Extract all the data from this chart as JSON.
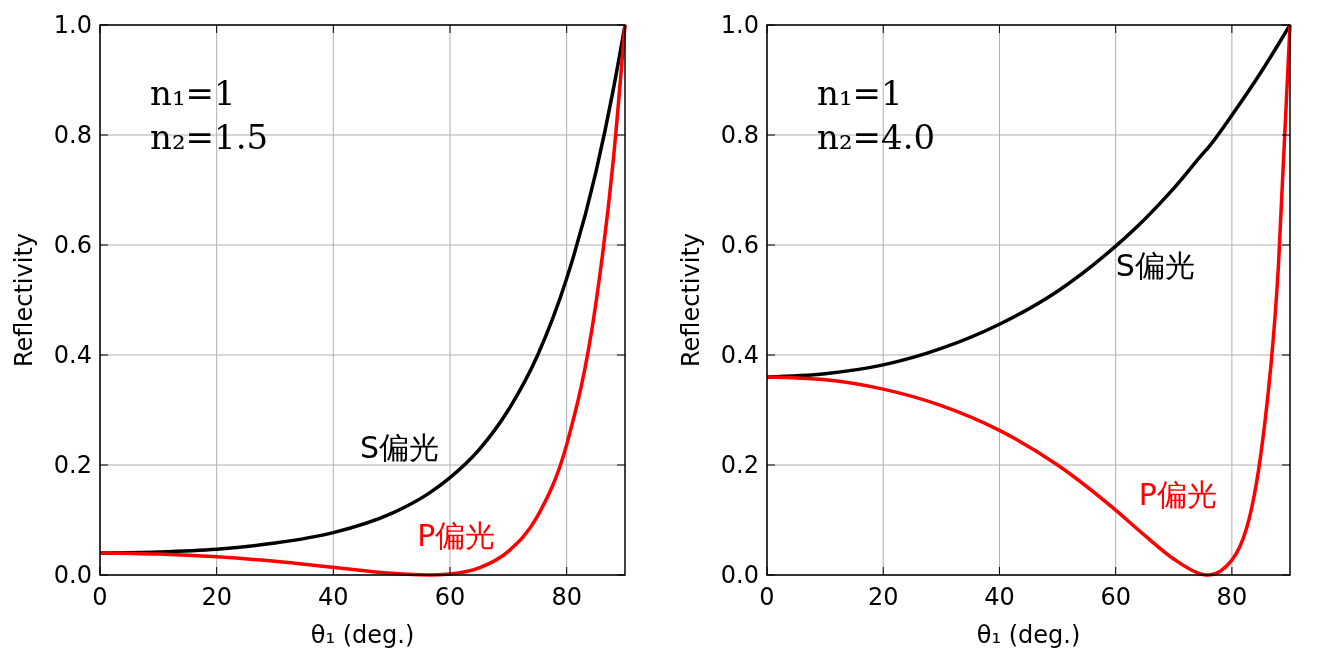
{
  "chart_data": [
    {
      "type": "line",
      "xlabel": "θ₁ (deg.)",
      "ylabel": "Reflectivity",
      "annotations": [
        "n₁=1",
        "n₂=1.5"
      ],
      "xlim": [
        0,
        90
      ],
      "ylim": [
        0,
        1
      ],
      "xticks": [
        0,
        20,
        40,
        60,
        80
      ],
      "yticks": [
        {
          "value": 0,
          "label": "0.0"
        },
        {
          "value": 0.2,
          "label": "0.2"
        },
        {
          "value": 0.4,
          "label": "0.4"
        },
        {
          "value": 0.6,
          "label": "0.6"
        },
        {
          "value": 0.8,
          "label": "0.8"
        },
        {
          "value": 1,
          "label": "1.0"
        }
      ],
      "grid": true,
      "series": [
        {
          "name": "S偏光",
          "color": "#000000",
          "x": [
            0,
            10,
            20,
            30,
            40,
            50,
            56.3,
            60,
            65,
            70,
            75,
            80,
            85,
            88,
            90
          ],
          "values": [
            0.04,
            0.042,
            0.047,
            0.058,
            0.077,
            0.112,
            0.148,
            0.177,
            0.228,
            0.3,
            0.399,
            0.539,
            0.732,
            0.883,
            1
          ]
        },
        {
          "name": "P偏光",
          "color": "#ff0000",
          "x": [
            0,
            10,
            20,
            30,
            40,
            50,
            56.3,
            60,
            65,
            70,
            75,
            80,
            85,
            88,
            90
          ],
          "values": [
            0.04,
            0.038,
            0.033,
            0.025,
            0.014,
            0.003,
            0,
            0.002,
            0.013,
            0.043,
            0.107,
            0.237,
            0.493,
            0.755,
            1
          ]
        }
      ]
    },
    {
      "type": "line",
      "xlabel": "θ₁ (deg.)",
      "ylabel": "Reflectivity",
      "annotations": [
        "n₁=1",
        "n₂=4.0"
      ],
      "xlim": [
        0,
        90
      ],
      "ylim": [
        0,
        1
      ],
      "xticks": [
        0,
        20,
        40,
        60,
        80
      ],
      "yticks": [
        {
          "value": 0,
          "label": "0.0"
        },
        {
          "value": 0.2,
          "label": "0.2"
        },
        {
          "value": 0.4,
          "label": "0.4"
        },
        {
          "value": 0.6,
          "label": "0.6"
        },
        {
          "value": 0.8,
          "label": "0.8"
        },
        {
          "value": 1,
          "label": "1.0"
        }
      ],
      "grid": true,
      "series": [
        {
          "name": "S偏光",
          "color": "#000000",
          "x": [
            0,
            10,
            20,
            30,
            40,
            50,
            60,
            65,
            70,
            75,
            76,
            80,
            85,
            88,
            90
          ],
          "values": [
            0.36,
            0.366,
            0.382,
            0.412,
            0.456,
            0.516,
            0.598,
            0.647,
            0.703,
            0.766,
            0.778,
            0.836,
            0.914,
            0.965,
            1
          ]
        },
        {
          "name": "P偏光",
          "color": "#ff0000",
          "x": [
            0,
            10,
            20,
            30,
            40,
            50,
            60,
            65,
            70,
            75,
            76,
            80,
            85,
            88,
            90
          ],
          "values": [
            0.36,
            0.355,
            0.338,
            0.308,
            0.263,
            0.2,
            0.118,
            0.072,
            0.029,
            0.001,
            0,
            0.027,
            0.221,
            0.56,
            1
          ]
        }
      ]
    }
  ]
}
